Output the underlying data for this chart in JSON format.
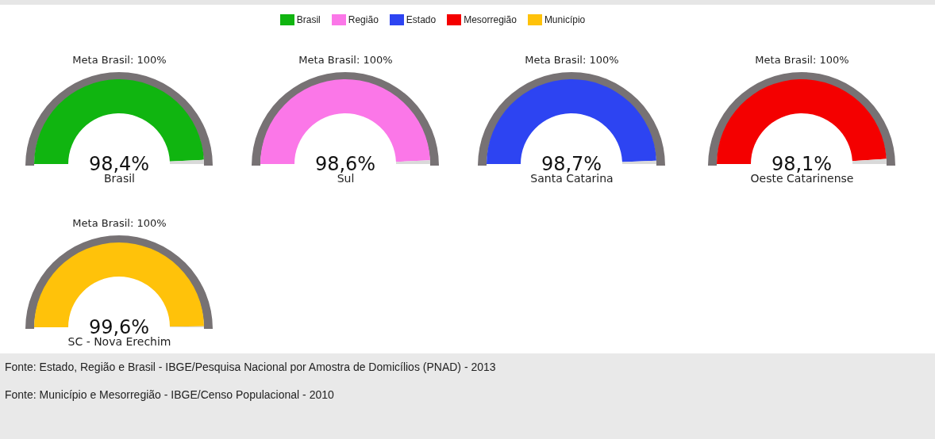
{
  "chart_data": [
    {
      "type": "donut",
      "title": "Meta Brasil: 100%",
      "xlabel": "Brasil",
      "categories": [
        "Brasil",
        null
      ],
      "values": [
        98.4,
        1.6
      ],
      "colors": [
        "#10b510",
        "#d9d9d9"
      ],
      "value_labels": [
        "98,4%",
        null
      ],
      "legend": "top"
    },
    {
      "type": "donut",
      "title": "Meta Brasil: 100%",
      "xlabel": "Sul",
      "categories": [
        "Região",
        null
      ],
      "values": [
        98.6,
        1.4
      ],
      "colors": [
        "#fb77e8",
        "#d9d9d9"
      ],
      "value_labels": [
        "98,6%",
        null
      ],
      "legend": "top"
    },
    {
      "type": "donut",
      "title": "Meta Brasil: 100%",
      "xlabel": "Santa Catarina",
      "categories": [
        "Estado",
        null
      ],
      "values": [
        98.7,
        1.3
      ],
      "colors": [
        "#2d44f2",
        "#d9d9d9"
      ],
      "value_labels": [
        "98,7%",
        null
      ],
      "legend": "top"
    },
    {
      "type": "donut",
      "title": "Meta Brasil: 100%",
      "xlabel": "Oeste Catarinense",
      "categories": [
        "Mesorregião",
        null
      ],
      "values": [
        98.1,
        1.9
      ],
      "colors": [
        "#f40000",
        "#d9d9d9"
      ],
      "value_labels": [
        "98,1%",
        null
      ],
      "legend": "top"
    },
    {
      "type": "donut",
      "title": "Meta Brasil: 100%",
      "xlabel": "SC - Nova Erechim",
      "categories": [
        "Município",
        null
      ],
      "values": [
        99.6,
        0.4
      ],
      "colors": [
        "#ffc20a",
        "#d9d9d9"
      ],
      "value_labels": [
        "99,6%",
        null
      ],
      "legend": "top",
      "annotations": [
        "Fonte: Estado, Região e Brasil - IBGE/Pesquisa Nacional por Amostra de Domicílios (PNAD) - 2013",
        "Fonte: Município e Mesorregião - IBGE/Censo Populacional - 2010"
      ]
    }
  ]
}
